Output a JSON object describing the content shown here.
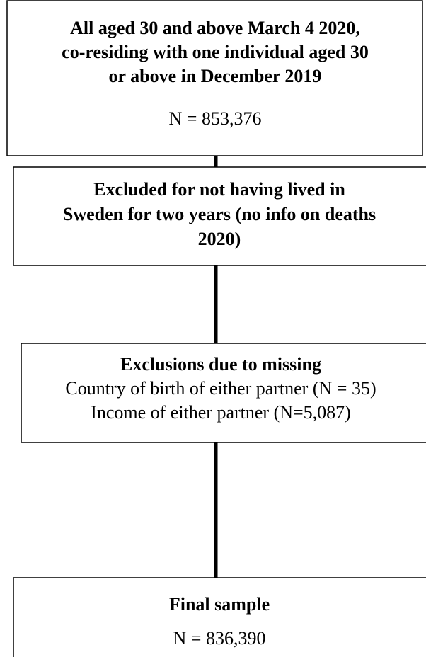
{
  "nodes": [
    {
      "lines": [
        "All aged 30 and above March 4 2020,",
        "co-residing with one individual aged 30",
        "or above in December 2019"
      ],
      "count": "N = 853,376"
    },
    {
      "lines": [
        "Excluded for not having lived in",
        "Sweden for two years (no info on deaths",
        "2020)"
      ]
    },
    {
      "lines": [
        "Exclusions due to missing",
        "Country of birth of either partner (N = 35)",
        "Income of either partner (N=5,087)"
      ]
    },
    {
      "lines": [
        "Final sample"
      ],
      "count": "N = 836,390"
    }
  ]
}
